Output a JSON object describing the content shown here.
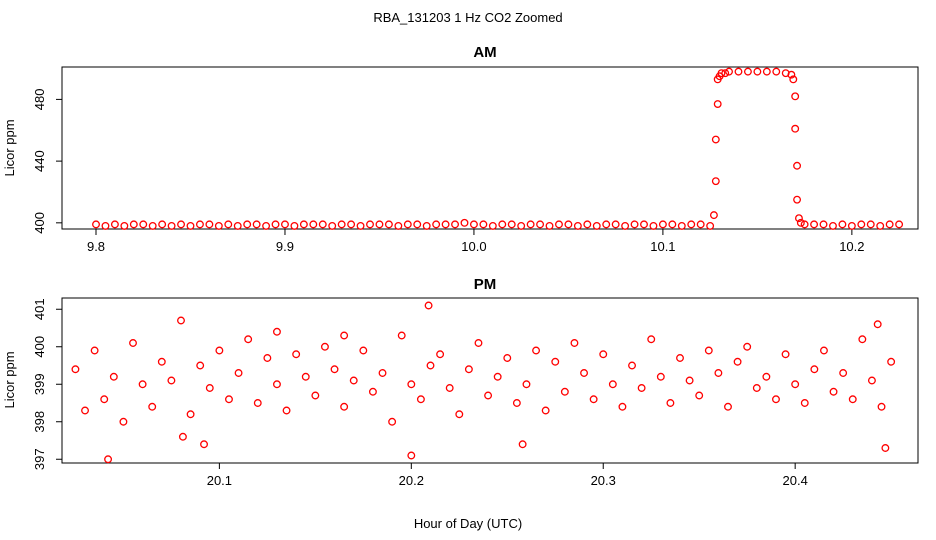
{
  "figure": {
    "title": "RBA_131203  1 Hz CO2 Zoomed",
    "xlabel": "Hour of Day (UTC)"
  },
  "colors": {
    "points": "#ff0000",
    "axes": "#000000"
  },
  "chart_data": [
    {
      "type": "scatter",
      "title": "AM",
      "xlabel": "",
      "ylabel": "Licor ppm",
      "xlim": [
        9.782,
        10.235
      ],
      "ylim": [
        396,
        501
      ],
      "xticks": [
        9.8,
        9.9,
        10.0,
        10.1,
        10.2
      ],
      "xtick_labels": [
        "9.8",
        "9.9",
        "10.0",
        "10.1",
        "10.2"
      ],
      "yticks": [
        400,
        440,
        480
      ],
      "ytick_labels": [
        "400",
        "440",
        "480"
      ],
      "marker": "open-circle",
      "color": "#ff0000",
      "grid": false,
      "series": [
        {
          "x": [
            9.8,
            9.805,
            9.81,
            9.815,
            9.82,
            9.825,
            9.83,
            9.835,
            9.84,
            9.845,
            9.85,
            9.855,
            9.86,
            9.865,
            9.87,
            9.875,
            9.88,
            9.885,
            9.89,
            9.895,
            9.9,
            9.905,
            9.91,
            9.915,
            9.92,
            9.925,
            9.93,
            9.935,
            9.94,
            9.945,
            9.95,
            9.955,
            9.96,
            9.965,
            9.97,
            9.975,
            9.98,
            9.985,
            9.99,
            9.995,
            10.0,
            10.005,
            10.01,
            10.015,
            10.02,
            10.025,
            10.03,
            10.035,
            10.04,
            10.045,
            10.05,
            10.055,
            10.06,
            10.065,
            10.07,
            10.075,
            10.08,
            10.085,
            10.09,
            10.095,
            10.1,
            10.105,
            10.11,
            10.115,
            10.12,
            10.125,
            10.127,
            10.128,
            10.128,
            10.129,
            10.129,
            10.13,
            10.131,
            10.133,
            10.135,
            10.14,
            10.145,
            10.15,
            10.155,
            10.16,
            10.165,
            10.168,
            10.169,
            10.17,
            10.17,
            10.171,
            10.171,
            10.172,
            10.173,
            10.175,
            10.18,
            10.185,
            10.19,
            10.195,
            10.2,
            10.205,
            10.21,
            10.215,
            10.22,
            10.225
          ],
          "y": [
            399,
            398,
            399,
            398,
            399,
            399,
            398,
            399,
            398,
            399,
            398,
            399,
            399,
            398,
            399,
            398,
            399,
            399,
            398,
            399,
            399,
            398,
            399,
            399,
            399,
            398,
            399,
            399,
            398,
            399,
            399,
            399,
            398,
            399,
            399,
            398,
            399,
            399,
            399,
            400,
            399,
            399,
            398,
            399,
            399,
            398,
            399,
            399,
            398,
            399,
            399,
            398,
            399,
            398,
            399,
            399,
            398,
            399,
            399,
            398,
            399,
            399,
            398,
            399,
            399,
            398,
            405,
            427,
            454,
            477,
            493,
            495,
            497,
            497,
            498,
            498,
            498,
            498,
            498,
            498,
            497,
            496,
            493,
            482,
            461,
            437,
            415,
            403,
            400,
            399,
            399,
            399,
            398,
            399,
            398,
            399,
            399,
            398,
            399,
            399
          ]
        }
      ]
    },
    {
      "type": "scatter",
      "title": "PM",
      "xlabel": "Hour of Day (UTC)",
      "ylabel": "Licor ppm",
      "xlim": [
        20.018,
        20.464
      ],
      "ylim": [
        396.9,
        401.3
      ],
      "xticks": [
        20.1,
        20.2,
        20.3,
        20.4
      ],
      "xtick_labels": [
        "20.1",
        "20.2",
        "20.3",
        "20.4"
      ],
      "yticks": [
        397,
        398,
        399,
        400,
        401
      ],
      "ytick_labels": [
        "397",
        "398",
        "399",
        "400",
        "401"
      ],
      "marker": "open-circle",
      "color": "#ff0000",
      "grid": false,
      "series": [
        {
          "x": [
            20.025,
            20.03,
            20.035,
            20.04,
            20.045,
            20.05,
            20.055,
            20.06,
            20.065,
            20.07,
            20.075,
            20.08,
            20.085,
            20.09,
            20.095,
            20.1,
            20.105,
            20.11,
            20.115,
            20.12,
            20.125,
            20.13,
            20.135,
            20.14,
            20.145,
            20.15,
            20.155,
            20.16,
            20.165,
            20.17,
            20.175,
            20.18,
            20.185,
            20.19,
            20.195,
            20.2,
            20.205,
            20.21,
            20.215,
            20.22,
            20.225,
            20.23,
            20.235,
            20.24,
            20.245,
            20.25,
            20.255,
            20.26,
            20.265,
            20.27,
            20.275,
            20.28,
            20.285,
            20.29,
            20.295,
            20.3,
            20.305,
            20.31,
            20.315,
            20.32,
            20.325,
            20.33,
            20.335,
            20.34,
            20.345,
            20.35,
            20.355,
            20.36,
            20.365,
            20.37,
            20.375,
            20.38,
            20.385,
            20.39,
            20.395,
            20.4,
            20.405,
            20.41,
            20.415,
            20.42,
            20.425,
            20.43,
            20.435,
            20.44,
            20.445,
            20.45,
            20.042,
            20.081,
            20.092,
            20.209,
            20.2,
            20.258,
            20.447,
            20.443,
            20.165,
            20.13
          ],
          "y": [
            399.4,
            398.3,
            399.9,
            398.6,
            399.2,
            398.0,
            400.1,
            399.0,
            398.4,
            399.6,
            399.1,
            400.7,
            398.2,
            399.5,
            398.9,
            399.9,
            398.6,
            399.3,
            400.2,
            398.5,
            399.7,
            399.0,
            398.3,
            399.8,
            399.2,
            398.7,
            400.0,
            399.4,
            398.4,
            399.1,
            399.9,
            398.8,
            399.3,
            398.0,
            400.3,
            399.0,
            398.6,
            399.5,
            399.8,
            398.9,
            398.2,
            399.4,
            400.1,
            398.7,
            399.2,
            399.7,
            398.5,
            399.0,
            399.9,
            398.3,
            399.6,
            398.8,
            400.1,
            399.3,
            398.6,
            399.8,
            399.0,
            398.4,
            399.5,
            398.9,
            400.2,
            399.2,
            398.5,
            399.7,
            399.1,
            398.7,
            399.9,
            399.3,
            398.4,
            399.6,
            400.0,
            398.9,
            399.2,
            398.6,
            399.8,
            399.0,
            398.5,
            399.4,
            399.9,
            398.8,
            399.3,
            398.6,
            400.2,
            399.1,
            398.4,
            399.6,
            397.0,
            397.6,
            397.4,
            401.1,
            397.1,
            397.4,
            397.3,
            400.6,
            400.3,
            400.4
          ]
        }
      ]
    }
  ]
}
